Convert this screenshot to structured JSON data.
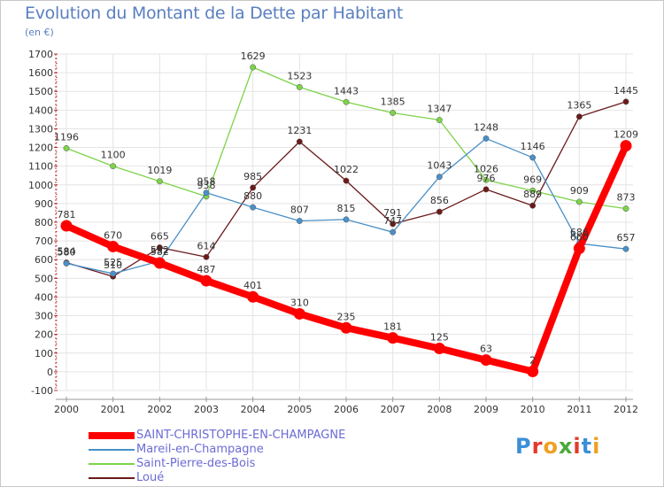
{
  "title": "Evolution du Montant de la Dette par Habitant",
  "subtitle": "(en €)",
  "logo": "Proxiti",
  "chart_data": {
    "type": "line",
    "title": "Evolution du Montant de la Dette par Habitant",
    "ylabel": "(en €)",
    "xlabel": "",
    "categories": [
      "2000",
      "2001",
      "2002",
      "2003",
      "2004",
      "2005",
      "2006",
      "2007",
      "2008",
      "2009",
      "2010",
      "2011",
      "2012"
    ],
    "ylim": [
      -100,
      1700
    ],
    "yticks": [
      -100,
      0,
      100,
      200,
      300,
      400,
      500,
      600,
      700,
      800,
      900,
      1000,
      1100,
      1200,
      1300,
      1400,
      1500,
      1600,
      1700
    ],
    "grid": true,
    "legend_position": "bottom-left",
    "series": [
      {
        "name": "SAINT-CHRISTOPHE-EN-CHAMPAGNE",
        "color": "#ff0000",
        "values": [
          781,
          670,
          582,
          487,
          401,
          310,
          235,
          181,
          125,
          63,
          2,
          660,
          1209
        ],
        "labels": [
          "781",
          "670",
          "582",
          "487",
          "401",
          "310",
          "235",
          "181",
          "125",
          "63",
          "2",
          "660",
          "1209"
        ]
      },
      {
        "name": "Mareil-en-Champagne",
        "color": "#4a90c8",
        "values": [
          580,
          525,
          592,
          958,
          880,
          807,
          815,
          747,
          1043,
          1248,
          1146,
          686,
          657
        ],
        "labels": [
          "580",
          "525",
          "592",
          "958",
          "880",
          "807",
          "815",
          "747",
          "1043",
          "1248",
          "1146",
          "686",
          "657"
        ]
      },
      {
        "name": "Saint-Pierre-des-Bois",
        "color": "#7dd34a",
        "values": [
          1196,
          1100,
          1019,
          938,
          1629,
          1523,
          1443,
          1385,
          1347,
          1026,
          969,
          909,
          873
        ],
        "labels": [
          "1196",
          "1100",
          "1019",
          "938",
          "1629",
          "1523",
          "1443",
          "1385",
          "1347",
          "1026",
          "969",
          "909",
          "873"
        ]
      },
      {
        "name": "Loué",
        "color": "#6b1a1a",
        "values": [
          584,
          510,
          665,
          614,
          985,
          1231,
          1022,
          791,
          856,
          976,
          889,
          1365,
          1445
        ],
        "labels": [
          "584",
          "510",
          "665",
          "614",
          "985",
          "1231",
          "1022",
          "791",
          "856",
          "976",
          "889",
          "1365",
          "1445"
        ]
      }
    ]
  }
}
